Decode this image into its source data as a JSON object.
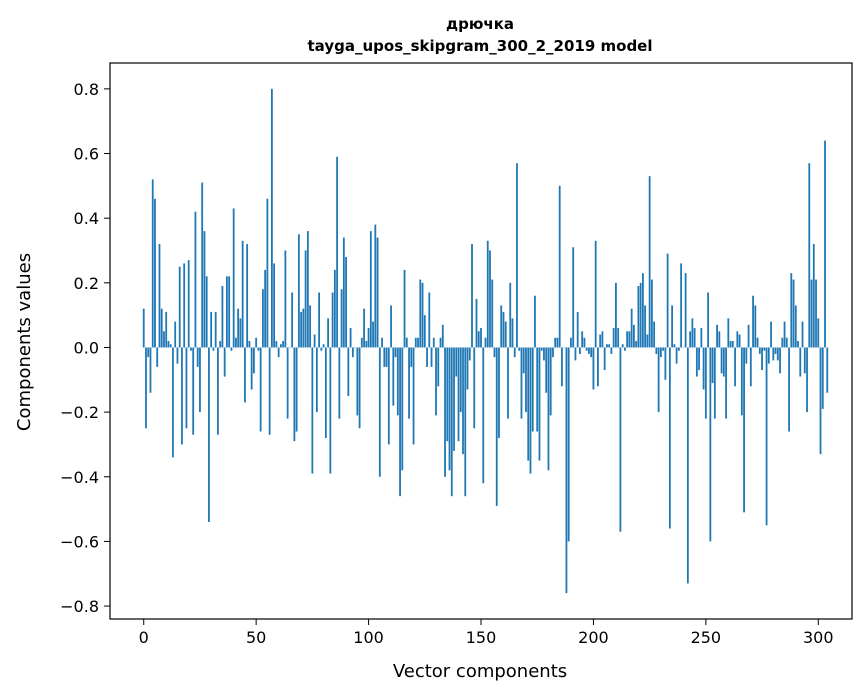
{
  "chart_data": {
    "type": "bar",
    "title": "дрючка",
    "subtitle": "tayga_upos_skipgram_300_2_2019 model",
    "xlabel": "Vector components",
    "ylabel": "Components values",
    "xlim": [
      -15,
      315
    ],
    "ylim": [
      -0.84,
      0.88
    ],
    "xticks": [
      0,
      50,
      100,
      150,
      200,
      250,
      300
    ],
    "yticks": [
      -0.8,
      -0.6,
      -0.4,
      -0.2,
      0.0,
      0.2,
      0.4,
      0.6,
      0.8
    ],
    "ytick_labels": [
      "−0.8",
      "−0.6",
      "−0.4",
      "−0.2",
      "0.0",
      "0.2",
      "0.4",
      "0.6",
      "0.8"
    ],
    "grid": false,
    "color": "#1f77b4",
    "values": [
      0.12,
      -0.25,
      -0.03,
      -0.14,
      0.52,
      0.46,
      -0.06,
      0.32,
      0.12,
      0.05,
      0.11,
      0.02,
      0.01,
      -0.34,
      0.08,
      -0.05,
      0.25,
      -0.3,
      0.26,
      -0.25,
      0.27,
      -0.01,
      -0.27,
      0.42,
      -0.06,
      -0.2,
      0.51,
      0.36,
      0.22,
      -0.54,
      0.11,
      -0.01,
      0.11,
      -0.27,
      0.02,
      0.19,
      -0.09,
      0.22,
      0.22,
      -0.01,
      0.43,
      0.03,
      0.12,
      0.09,
      0.33,
      -0.17,
      0.32,
      0.02,
      -0.13,
      -0.08,
      0.03,
      -0.01,
      -0.26,
      0.18,
      0.24,
      0.46,
      -0.27,
      0.8,
      0.26,
      0.02,
      -0.03,
      0.01,
      0.02,
      0.3,
      -0.22,
      0.0,
      0.17,
      -0.29,
      -0.26,
      0.35,
      0.11,
      0.12,
      0.3,
      0.36,
      0.13,
      -0.39,
      0.04,
      -0.2,
      0.17,
      -0.01,
      0.01,
      -0.28,
      0.09,
      -0.39,
      0.17,
      0.24,
      0.59,
      -0.22,
      0.18,
      0.34,
      0.28,
      -0.15,
      0.06,
      -0.03,
      0.0,
      -0.21,
      -0.25,
      0.03,
      0.12,
      0.02,
      0.06,
      0.36,
      0.08,
      0.38,
      0.34,
      -0.4,
      0.03,
      -0.06,
      -0.06,
      -0.3,
      0.13,
      -0.18,
      -0.03,
      -0.21,
      -0.46,
      -0.38,
      0.24,
      0.03,
      -0.22,
      -0.06,
      -0.3,
      0.03,
      0.03,
      0.21,
      0.2,
      0.1,
      -0.06,
      0.17,
      -0.06,
      0.03,
      -0.21,
      -0.12,
      0.03,
      0.07,
      -0.4,
      -0.29,
      -0.38,
      -0.46,
      -0.32,
      -0.09,
      -0.29,
      -0.2,
      -0.33,
      -0.46,
      -0.13,
      -0.04,
      0.32,
      -0.25,
      0.15,
      0.05,
      0.06,
      -0.42,
      0.03,
      0.33,
      0.3,
      0.21,
      -0.03,
      -0.49,
      -0.28,
      0.13,
      0.11,
      0.08,
      -0.22,
      0.2,
      0.09,
      -0.03,
      0.57,
      -0.01,
      -0.22,
      -0.08,
      -0.2,
      -0.35,
      -0.39,
      -0.26,
      0.16,
      -0.26,
      -0.35,
      -0.01,
      -0.04,
      -0.14,
      -0.38,
      -0.21,
      -0.03,
      0.03,
      0.03,
      0.5,
      -0.12,
      0.0,
      -0.76,
      -0.6,
      0.03,
      0.31,
      -0.04,
      0.11,
      -0.02,
      0.05,
      0.03,
      -0.01,
      -0.02,
      -0.03,
      -0.13,
      0.33,
      -0.12,
      0.04,
      0.05,
      -0.07,
      0.01,
      0.01,
      -0.02,
      0.06,
      0.2,
      0.06,
      -0.57,
      0.01,
      -0.01,
      0.05,
      0.05,
      0.12,
      0.07,
      0.02,
      0.19,
      0.2,
      0.23,
      0.13,
      0.04,
      0.53,
      0.21,
      0.08,
      -0.02,
      -0.2,
      -0.03,
      -0.01,
      -0.1,
      0.29,
      -0.56,
      0.13,
      0.01,
      -0.05,
      -0.01,
      0.26,
      0.0,
      0.23,
      -0.73,
      0.05,
      0.09,
      0.06,
      -0.09,
      -0.07,
      0.06,
      -0.13,
      -0.22,
      0.17,
      -0.6,
      -0.11,
      -0.22,
      0.07,
      0.05,
      -0.08,
      -0.09,
      -0.22,
      0.09,
      0.02,
      0.02,
      -0.12,
      0.05,
      0.04,
      -0.21,
      -0.51,
      -0.05,
      0.07,
      -0.12,
      0.16,
      0.13,
      0.03,
      -0.02,
      -0.07,
      -0.01,
      -0.55,
      -0.05,
      0.08,
      -0.04,
      -0.02,
      -0.04,
      -0.08,
      0.03,
      0.08,
      0.03,
      -0.26,
      0.23,
      0.21,
      0.13,
      0.02,
      -0.09,
      0.08,
      -0.08,
      -0.2,
      0.57,
      0.21,
      0.32,
      0.21,
      0.09,
      -0.33,
      -0.19,
      0.64,
      -0.14
    ]
  }
}
